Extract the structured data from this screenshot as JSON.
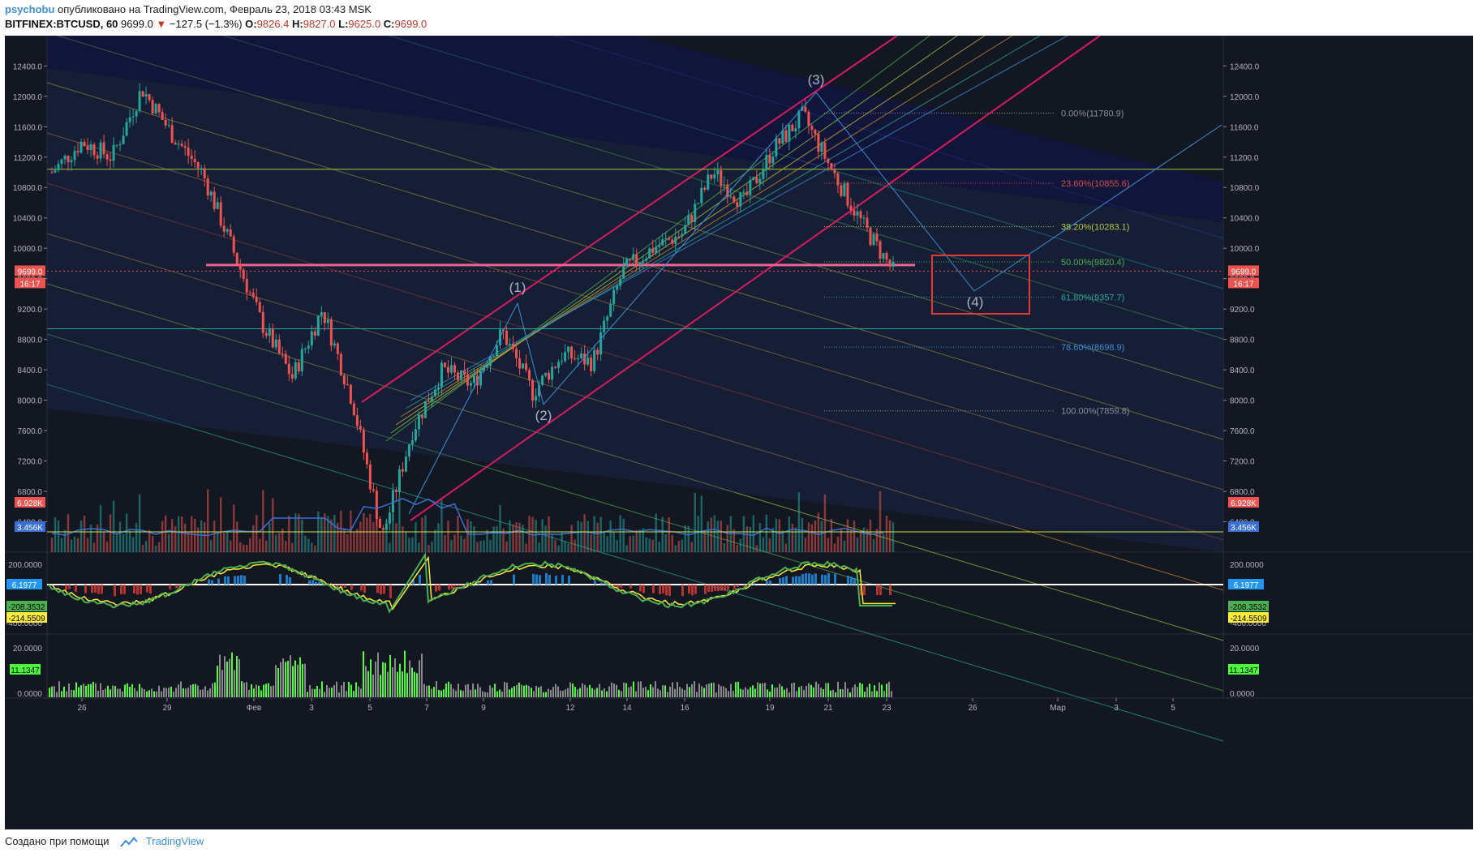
{
  "header": {
    "author": "psychobu",
    "published": "опубликовано на TradingView.com, Февраль 23, 2018 03:43 MSK",
    "symbol": "BITFINEX:BTCUSD, 60",
    "last": "9699.0",
    "change": "−127.5 (−1.3%)",
    "o_label": "O:",
    "o": "9826.4",
    "h_label": "H:",
    "h": "9827.0",
    "l_label": "L:",
    "l": "9625.0",
    "c_label": "C:",
    "c": "9699.0"
  },
  "footer": {
    "created_with": "Создано при помощи",
    "brand": "TradingView"
  },
  "chart_data": {
    "type": "line",
    "title": "",
    "price_axis": {
      "ylim": [
        6000,
        12600
      ],
      "ticks": [
        "6400.0",
        "6800.0",
        "7200.0",
        "7600.0",
        "8000.0",
        "8400.0",
        "8800.0",
        "9200.0",
        "9600.0",
        "10000.0",
        "10400.0",
        "10800.0",
        "11200.0",
        "11600.0",
        "12000.0",
        "12400.0"
      ]
    },
    "x_axis": {
      "ticks": [
        "26",
        "29",
        "Фев",
        "3",
        "5",
        "7",
        "9",
        "12",
        "14",
        "16",
        "19",
        "21",
        "23",
        "26",
        "Мар",
        "3",
        "5"
      ]
    },
    "price_series": {
      "name": "BTCUSD",
      "x": [
        "Jan 25",
        "Jan 27",
        "Jan 28",
        "Jan 29",
        "Jan 30",
        "Jan 31",
        "Feb 1",
        "Feb 2",
        "Feb 3",
        "Feb 4",
        "Feb 5",
        "Feb 6",
        "Feb 7",
        "Feb 8",
        "Feb 9",
        "Feb 10",
        "Feb 11",
        "Feb 12",
        "Feb 13",
        "Feb 14",
        "Feb 15",
        "Feb 16",
        "Feb 17",
        "Feb 18",
        "Feb 19",
        "Feb 20",
        "Feb 21",
        "Feb 22",
        "Feb 23"
      ],
      "y": [
        11000,
        11400,
        11200,
        12100,
        11500,
        11000,
        10000,
        9000,
        8300,
        9200,
        8000,
        6200,
        7600,
        8400,
        8200,
        8900,
        8100,
        8600,
        8500,
        9700,
        10000,
        10200,
        11000,
        10600,
        11300,
        11750,
        11000,
        10300,
        9699
      ]
    },
    "fibonacci": [
      {
        "label": "0.00%(11780.9)",
        "value": 11780.9,
        "color": "#8a8f99"
      },
      {
        "label": "23.60%(10855.6)",
        "value": 10855.6,
        "color": "#d24c4c"
      },
      {
        "label": "38.20%(10283.1)",
        "value": 10283.1,
        "color": "#b8c842"
      },
      {
        "label": "50.00%(9820.4)",
        "value": 9820.4,
        "color": "#4caf50"
      },
      {
        "label": "61.80%(9357.7)",
        "value": 9357.7,
        "color": "#26a69a"
      },
      {
        "label": "78.60%(8698.9)",
        "value": 8698.9,
        "color": "#3b8fd6"
      },
      {
        "label": "100.00%(7859.8)",
        "value": 7859.8,
        "color": "#8a8f99"
      }
    ],
    "wave_labels": [
      "(1)",
      "(2)",
      "(3)",
      "(4)"
    ],
    "price_badges": {
      "last": "9699.0",
      "countdown": "16:17",
      "volume": "6.928K",
      "volume_ma": "3.456K"
    },
    "cci": {
      "ticks": [
        "200.0000",
        "-400.0000"
      ],
      "badges": [
        "6.1977",
        "-208.3532",
        "-214.5509"
      ]
    },
    "volatility": {
      "ticks": [
        "20.0000",
        "0.0000"
      ],
      "badge": "11.1347"
    },
    "colors": {
      "up": "#26a69a",
      "down": "#ef5350",
      "background": "#131722",
      "highlight": "#d81b60",
      "target_box": "#e53935"
    }
  }
}
